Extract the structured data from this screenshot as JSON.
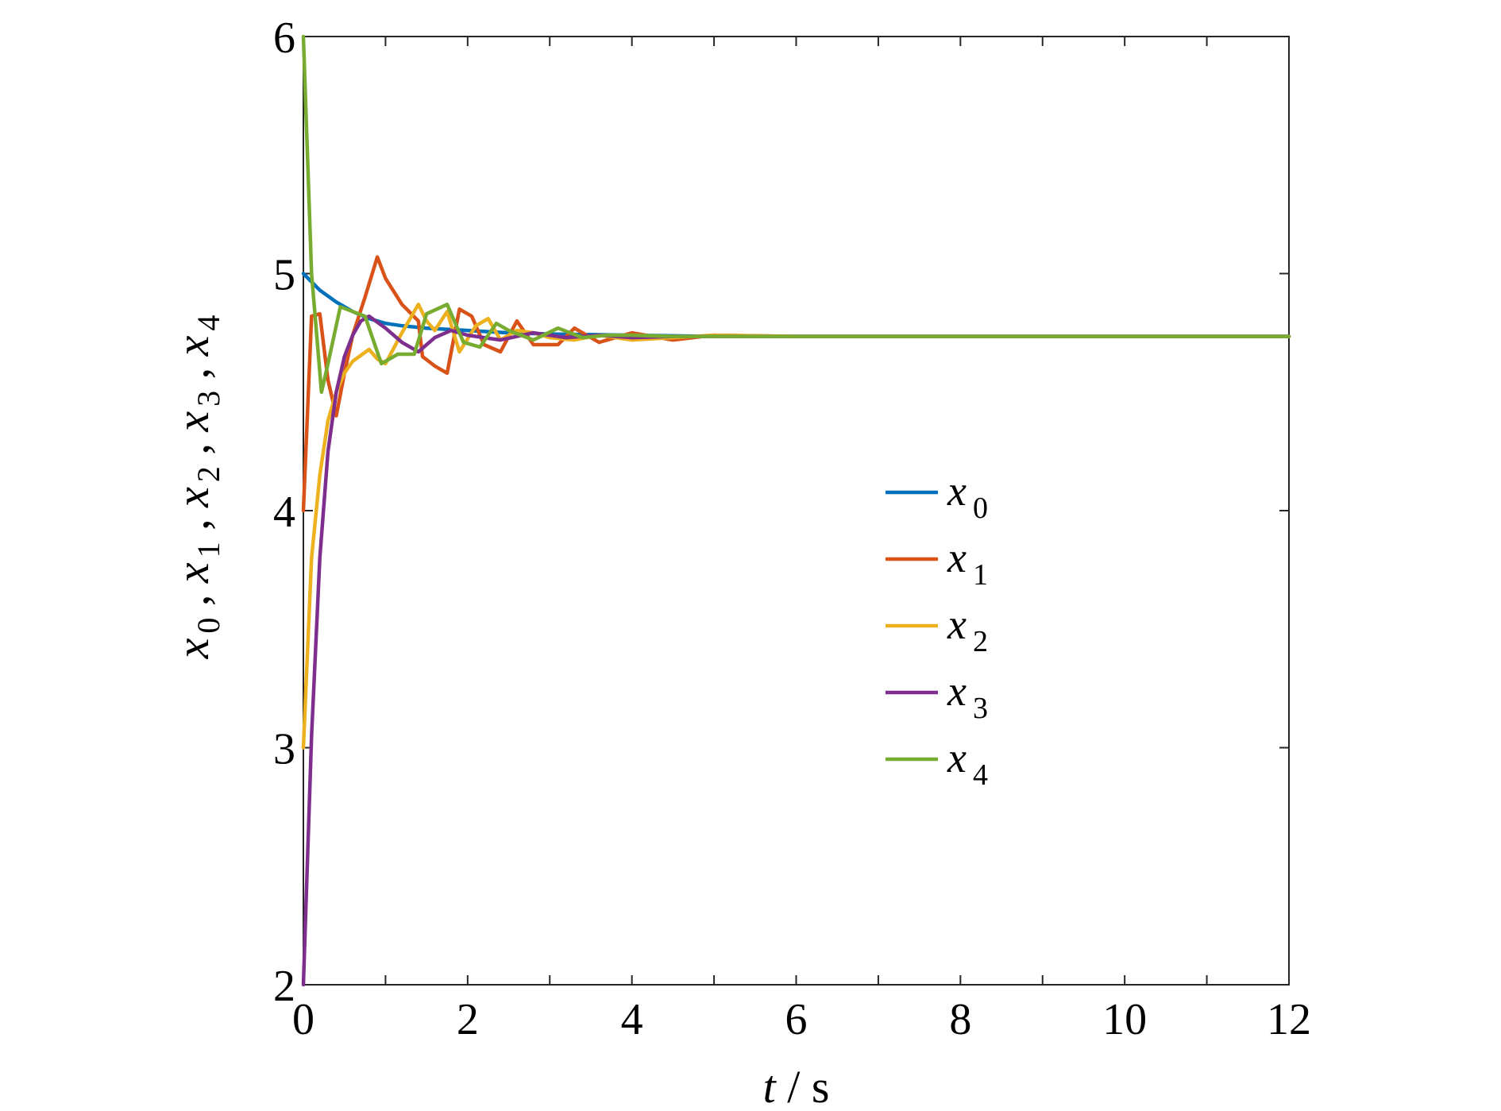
{
  "chart_data": {
    "type": "line",
    "title": "",
    "xlabel": {
      "var": "t",
      "sep": " / ",
      "unit": "s"
    },
    "ylabel": [
      {
        "var": "x",
        "sub": "0"
      },
      {
        "var": "x",
        "sub": "1"
      },
      {
        "var": "x",
        "sub": "2"
      },
      {
        "var": "x",
        "sub": "3"
      },
      {
        "var": "x",
        "sub": "4"
      }
    ],
    "ylabel_separator": " , ",
    "xlim": [
      0,
      12
    ],
    "ylim": [
      2,
      6
    ],
    "xticks": [
      0,
      2,
      4,
      6,
      8,
      10,
      12
    ],
    "yticks": [
      2,
      3,
      4,
      5,
      6
    ],
    "grid": false,
    "legend_position": "center-right",
    "series": [
      {
        "name": "x0",
        "label_var": "x",
        "label_sub": "0",
        "color": "#0072BD",
        "x": [
          0,
          0.2,
          0.4,
          0.6,
          0.8,
          1.0,
          1.2,
          1.5,
          2.0,
          2.5,
          3.0,
          4.0,
          5.0,
          6.0,
          8.0,
          10.0,
          12.0
        ],
        "y": [
          5.0,
          4.93,
          4.88,
          4.84,
          4.81,
          4.79,
          4.78,
          4.77,
          4.76,
          4.75,
          4.745,
          4.74,
          4.735,
          4.735,
          4.735,
          4.735,
          4.735
        ]
      },
      {
        "name": "x1",
        "label_var": "x",
        "label_sub": "1",
        "color": "#D95319",
        "x": [
          0,
          0.1,
          0.2,
          0.3,
          0.4,
          0.5,
          0.6,
          0.75,
          0.9,
          1.0,
          1.2,
          1.4,
          1.45,
          1.6,
          1.75,
          1.9,
          2.05,
          2.2,
          2.4,
          2.6,
          2.8,
          3.1,
          3.3,
          3.6,
          4.0,
          4.5,
          5.0,
          6.0,
          8.0,
          12.0
        ],
        "y": [
          4.0,
          4.82,
          4.83,
          4.55,
          4.4,
          4.58,
          4.74,
          4.9,
          5.07,
          4.98,
          4.87,
          4.8,
          4.65,
          4.61,
          4.58,
          4.85,
          4.82,
          4.7,
          4.67,
          4.8,
          4.7,
          4.7,
          4.77,
          4.71,
          4.75,
          4.72,
          4.74,
          4.735,
          4.735,
          4.735
        ]
      },
      {
        "name": "x2",
        "label_var": "x",
        "label_sub": "2",
        "color": "#EDB120",
        "x": [
          0,
          0.1,
          0.2,
          0.3,
          0.4,
          0.5,
          0.6,
          0.8,
          0.9,
          1.0,
          1.2,
          1.4,
          1.5,
          1.6,
          1.75,
          1.9,
          2.1,
          2.25,
          2.4,
          2.6,
          2.8,
          3.0,
          3.3,
          3.6,
          4.0,
          4.5,
          5.0,
          6.0,
          8.0,
          12.0
        ],
        "y": [
          3.0,
          3.8,
          4.15,
          4.38,
          4.5,
          4.58,
          4.63,
          4.68,
          4.64,
          4.62,
          4.75,
          4.87,
          4.8,
          4.76,
          4.84,
          4.67,
          4.78,
          4.81,
          4.72,
          4.76,
          4.75,
          4.73,
          4.72,
          4.74,
          4.72,
          4.73,
          4.74,
          4.735,
          4.735,
          4.735
        ]
      },
      {
        "name": "x3",
        "label_var": "x",
        "label_sub": "3",
        "color": "#7E2F8E",
        "x": [
          0,
          0.1,
          0.2,
          0.3,
          0.4,
          0.5,
          0.6,
          0.7,
          0.8,
          1.0,
          1.2,
          1.4,
          1.6,
          1.8,
          2.0,
          2.4,
          2.8,
          3.2,
          3.6,
          4.0,
          4.5,
          5.0,
          6.0,
          8.0,
          12.0
        ],
        "y": [
          2.0,
          3.05,
          3.8,
          4.25,
          4.5,
          4.65,
          4.74,
          4.8,
          4.82,
          4.77,
          4.71,
          4.67,
          4.73,
          4.76,
          4.74,
          4.72,
          4.75,
          4.73,
          4.74,
          4.73,
          4.735,
          4.735,
          4.735,
          4.735,
          4.735
        ]
      },
      {
        "name": "x4",
        "label_var": "x",
        "label_sub": "4",
        "color": "#77AC30",
        "x": [
          0,
          0.1,
          0.22,
          0.3,
          0.45,
          0.6,
          0.75,
          0.95,
          1.15,
          1.35,
          1.5,
          1.75,
          1.95,
          2.15,
          2.35,
          2.5,
          2.8,
          3.1,
          3.4,
          3.7,
          4.0,
          4.5,
          5.0,
          6.0,
          8.0,
          12.0
        ],
        "y": [
          6.0,
          5.0,
          4.5,
          4.62,
          4.86,
          4.84,
          4.82,
          4.62,
          4.66,
          4.66,
          4.83,
          4.87,
          4.71,
          4.69,
          4.79,
          4.76,
          4.72,
          4.77,
          4.73,
          4.74,
          4.74,
          4.735,
          4.735,
          4.735,
          4.735,
          4.735
        ]
      }
    ]
  }
}
